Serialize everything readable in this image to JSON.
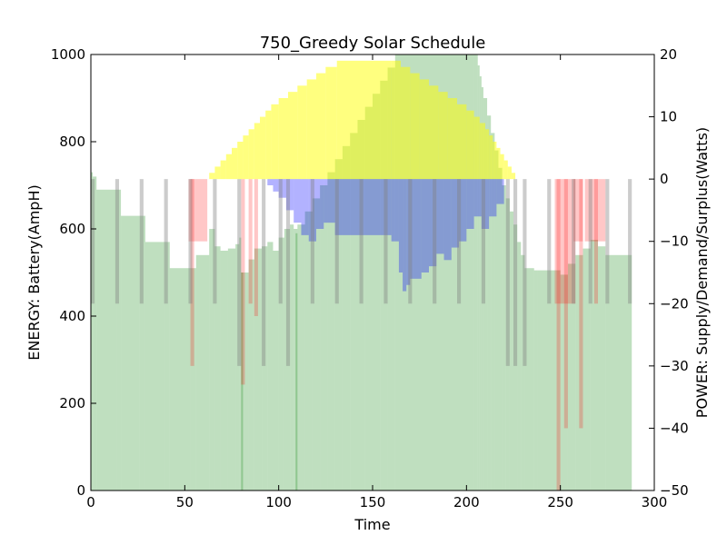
{
  "chart_data": {
    "type": "bar",
    "title": "750_Greedy Solar Schedule",
    "xlabel": "Time",
    "ylabel": "ENERGY: Battery(AmpH)",
    "ylabel_right": "POWER: Supply/Demand/Surplus(Watts)",
    "xlim": [
      0,
      300
    ],
    "ylim": [
      0,
      1000
    ],
    "ylim_right": [
      -50,
      20
    ],
    "x_ticks": [
      0,
      50,
      100,
      150,
      200,
      250,
      300
    ],
    "y_ticks": [
      0,
      200,
      400,
      600,
      800,
      1000
    ],
    "y_ticks_right": [
      -50,
      -40,
      -30,
      -20,
      -10,
      0,
      10,
      20
    ],
    "grid": false,
    "colors": {
      "battery": "#008000",
      "battery_alpha": 0.25,
      "supply": "#ffff00",
      "supply_alpha": 0.5,
      "demand": "#ff0000",
      "demand_alpha": 0.22,
      "surplus": "#0000ff",
      "surplus_alpha": 0.3,
      "spike": "#808080",
      "spike_alpha": 0.4
    },
    "battery_energy": {
      "axis": "left",
      "step_points": [
        [
          0,
          730
        ],
        [
          1,
          720
        ],
        [
          3,
          690
        ],
        [
          14,
          690
        ],
        [
          16,
          630
        ],
        [
          26,
          630
        ],
        [
          29,
          570
        ],
        [
          39,
          570
        ],
        [
          42,
          510
        ],
        [
          53,
          510
        ],
        [
          56,
          540
        ],
        [
          63,
          600
        ],
        [
          66,
          560
        ],
        [
          69,
          550
        ],
        [
          73,
          555
        ],
        [
          77,
          565
        ],
        [
          79,
          580
        ],
        [
          80,
          500
        ],
        [
          84,
          530
        ],
        [
          87,
          555
        ],
        [
          91,
          560
        ],
        [
          94,
          570
        ],
        [
          97,
          550
        ],
        [
          100,
          580
        ],
        [
          103,
          600
        ],
        [
          106,
          610
        ],
        [
          108,
          600
        ],
        [
          110,
          610
        ],
        [
          114,
          640
        ],
        [
          118,
          670
        ],
        [
          122,
          700
        ],
        [
          126,
          730
        ],
        [
          130,
          760
        ],
        [
          134,
          790
        ],
        [
          138,
          820
        ],
        [
          142,
          850
        ],
        [
          146,
          880
        ],
        [
          150,
          910
        ],
        [
          154,
          940
        ],
        [
          158,
          970
        ],
        [
          162,
          1000
        ],
        [
          204,
          1000
        ],
        [
          206,
          975
        ],
        [
          207,
          950
        ],
        [
          208,
          925
        ],
        [
          209,
          900
        ],
        [
          211,
          860
        ],
        [
          213,
          820
        ],
        [
          215,
          780
        ],
        [
          217,
          740
        ],
        [
          219,
          700
        ],
        [
          221,
          670
        ],
        [
          223,
          640
        ],
        [
          225,
          610
        ],
        [
          227,
          570
        ],
        [
          229,
          540
        ],
        [
          231,
          510
        ],
        [
          236,
          505
        ],
        [
          238,
          505
        ],
        [
          247,
          505
        ],
        [
          250,
          495
        ],
        [
          254,
          520
        ],
        [
          258,
          540
        ],
        [
          262,
          555
        ],
        [
          266,
          575
        ],
        [
          270,
          560
        ],
        [
          274,
          540
        ],
        [
          288,
          540
        ]
      ],
      "dips": [
        [
          80,
          500
        ],
        [
          109,
          590
        ],
        [
          224,
          0
        ],
        [
          248,
          0
        ],
        [
          249,
          0
        ]
      ],
      "end": 288
    },
    "solar_supply": {
      "axis": "right",
      "step_points": [
        [
          63,
          1
        ],
        [
          66,
          2
        ],
        [
          69,
          3
        ],
        [
          72,
          4
        ],
        [
          75,
          5
        ],
        [
          78,
          6
        ],
        [
          81,
          7
        ],
        [
          84,
          8
        ],
        [
          87,
          9
        ],
        [
          90,
          10
        ],
        [
          93,
          11
        ],
        [
          96,
          12
        ],
        [
          100,
          13
        ],
        [
          105,
          14
        ],
        [
          110,
          15
        ],
        [
          115,
          16
        ],
        [
          120,
          17
        ],
        [
          125,
          18
        ],
        [
          131,
          19
        ],
        [
          135,
          19
        ],
        [
          160,
          19
        ],
        [
          165,
          18
        ],
        [
          170,
          17
        ],
        [
          175,
          16
        ],
        [
          180,
          15
        ],
        [
          185,
          14
        ],
        [
          190,
          13
        ],
        [
          195,
          12
        ],
        [
          200,
          11
        ],
        [
          204,
          10
        ],
        [
          207,
          9
        ],
        [
          210,
          8
        ],
        [
          212,
          7
        ],
        [
          214,
          6
        ],
        [
          216,
          5
        ],
        [
          218,
          4
        ],
        [
          220,
          3
        ],
        [
          222,
          2
        ],
        [
          224,
          1
        ],
        [
          226,
          0
        ]
      ]
    },
    "surplus": {
      "axis": "right",
      "bars": [
        [
          94,
          97,
          -1
        ],
        [
          97,
          100,
          -2
        ],
        [
          100,
          104,
          -3
        ],
        [
          104,
          108,
          -5
        ],
        [
          108,
          112,
          -7
        ],
        [
          112,
          116,
          -9
        ],
        [
          116,
          120,
          -10
        ],
        [
          120,
          124,
          -8
        ],
        [
          124,
          130,
          -7
        ],
        [
          130,
          150,
          -9
        ],
        [
          150,
          160,
          -9
        ],
        [
          160,
          164,
          -10
        ],
        [
          164,
          166,
          -15
        ],
        [
          166,
          168,
          -18
        ],
        [
          168,
          170,
          -17
        ],
        [
          170,
          172,
          -16
        ],
        [
          172,
          176,
          -16
        ],
        [
          176,
          180,
          -15
        ],
        [
          180,
          184,
          -14
        ],
        [
          184,
          188,
          -12
        ],
        [
          188,
          192,
          -13
        ],
        [
          192,
          196,
          -11
        ],
        [
          196,
          200,
          -10
        ],
        [
          200,
          204,
          -8
        ],
        [
          204,
          208,
          -6
        ],
        [
          208,
          212,
          -8
        ],
        [
          212,
          216,
          -6
        ],
        [
          216,
          220,
          -4
        ]
      ]
    },
    "demand": {
      "axis": "right",
      "bars": [
        [
          52,
          62,
          -10
        ],
        [
          53,
          55,
          -30
        ],
        [
          80,
          82,
          -33
        ],
        [
          84,
          86,
          -20
        ],
        [
          87,
          89,
          -22
        ],
        [
          247,
          258,
          -20
        ],
        [
          248,
          250,
          -50
        ],
        [
          252,
          254,
          -40
        ],
        [
          257,
          262,
          -10
        ],
        [
          260,
          262,
          -40
        ],
        [
          263,
          274,
          -10
        ],
        [
          268,
          270,
          -20
        ]
      ]
    },
    "spikes": {
      "axis": "right",
      "bars": [
        [
          0,
          2,
          -20
        ],
        [
          13,
          15,
          -20
        ],
        [
          26,
          28,
          -20
        ],
        [
          39,
          41,
          -20
        ],
        [
          52,
          54,
          -20
        ],
        [
          65,
          67,
          -20
        ],
        [
          78,
          80,
          -30
        ],
        [
          91,
          93,
          -30
        ],
        [
          100,
          102,
          -20
        ],
        [
          104,
          106,
          -30
        ],
        [
          117,
          119,
          -20
        ],
        [
          130,
          132,
          -20
        ],
        [
          143,
          145,
          -20
        ],
        [
          156,
          158,
          -20
        ],
        [
          169,
          171,
          -20
        ],
        [
          182,
          184,
          -20
        ],
        [
          195,
          197,
          -20
        ],
        [
          208,
          210,
          -20
        ],
        [
          221,
          223,
          -30
        ],
        [
          225,
          227,
          -30
        ],
        [
          230,
          232,
          -30
        ],
        [
          243,
          245,
          -20
        ],
        [
          256,
          258,
          -20
        ],
        [
          265,
          267,
          -20
        ],
        [
          274,
          276,
          -20
        ],
        [
          286,
          288,
          -20
        ]
      ]
    }
  }
}
